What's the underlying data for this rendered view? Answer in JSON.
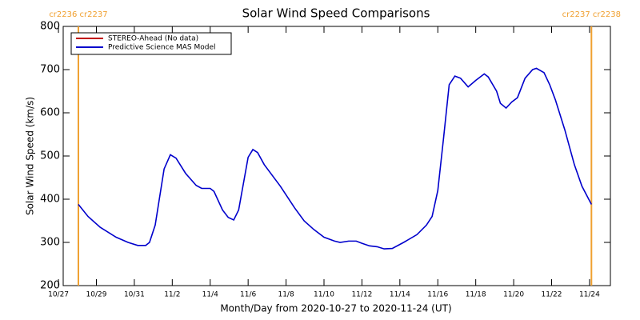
{
  "chart_data": {
    "type": "line",
    "title": "Solar Wind Speed Comparisons",
    "xlabel": "Month/Day from 2020-10-27 to 2020-11-24 (UT)",
    "ylabel": "Solar Wind Speed (km/s)",
    "xlim": [
      0.25,
      29.1
    ],
    "ylim": [
      200,
      800
    ],
    "yticks": [
      200,
      300,
      400,
      500,
      600,
      700,
      800
    ],
    "xticks": [
      {
        "value": 0,
        "label": "10/27"
      },
      {
        "value": 2,
        "label": "10/29"
      },
      {
        "value": 4,
        "label": "10/31"
      },
      {
        "value": 6,
        "label": "11/2"
      },
      {
        "value": 8,
        "label": "11/4"
      },
      {
        "value": 10,
        "label": "11/6"
      },
      {
        "value": 12,
        "label": "11/8"
      },
      {
        "value": 14,
        "label": "11/10"
      },
      {
        "value": 16,
        "label": "11/12"
      },
      {
        "value": 18,
        "label": "11/14"
      },
      {
        "value": 20,
        "label": "11/16"
      },
      {
        "value": 22,
        "label": "11/18"
      },
      {
        "value": 24,
        "label": "11/20"
      },
      {
        "value": 26,
        "label": "11/22"
      },
      {
        "value": 28,
        "label": "11/24"
      }
    ],
    "legend": "upper left",
    "annotations": [
      {
        "text": "cr2236 cr2237",
        "x": 1.05,
        "color": "#f0a030"
      },
      {
        "text": "cr2237 cr2238",
        "x": 28.1,
        "color": "#f0a030"
      }
    ],
    "series": [
      {
        "name": "STEREO-Ahead (No data)",
        "color": "#c00000",
        "x": [],
        "values": []
      },
      {
        "name": "Predictive Science MAS Model",
        "color": "#0000cc",
        "x": [
          1.05,
          1.56,
          2.2,
          3.04,
          3.67,
          4.18,
          4.6,
          4.8,
          5.1,
          5.57,
          5.9,
          6.2,
          6.7,
          7.26,
          7.55,
          8.0,
          8.2,
          8.65,
          8.95,
          9.24,
          9.5,
          10.0,
          10.25,
          10.5,
          10.85,
          11.7,
          12.45,
          12.95,
          13.46,
          14.0,
          14.56,
          14.85,
          15.3,
          15.7,
          16.0,
          16.4,
          16.8,
          17.17,
          17.6,
          18.2,
          18.9,
          19.4,
          19.7,
          20.0,
          20.3,
          20.6,
          20.9,
          21.2,
          21.6,
          22.0,
          22.45,
          22.66,
          23.1,
          23.3,
          23.6,
          23.9,
          24.2,
          24.6,
          25.0,
          25.2,
          25.6,
          25.9,
          26.2,
          26.7,
          27.2,
          27.6,
          28.1
        ],
        "values": [
          388,
          360,
          335,
          312,
          300,
          293,
          293,
          300,
          340,
          470,
          503,
          495,
          460,
          432,
          425,
          425,
          418,
          375,
          358,
          352,
          375,
          497,
          515,
          508,
          480,
          430,
          380,
          350,
          330,
          312,
          303,
          300,
          303,
          303,
          298,
          292,
          290,
          285,
          286,
          300,
          318,
          340,
          360,
          420,
          540,
          665,
          685,
          680,
          660,
          675,
          690,
          683,
          650,
          622,
          611,
          625,
          635,
          680,
          700,
          703,
          693,
          665,
          630,
          560,
          480,
          430,
          388
        ]
      }
    ]
  }
}
